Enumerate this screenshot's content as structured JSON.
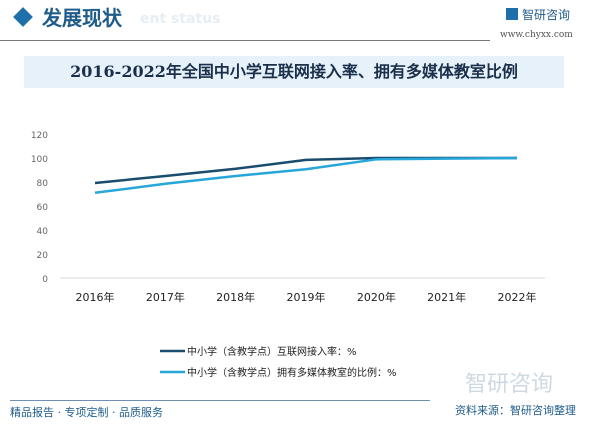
{
  "header": {
    "title": "发展现状",
    "subtitle": "ent status",
    "logo": "智研咨询",
    "url": "www.chyxx.com"
  },
  "chart_data": {
    "type": "line",
    "title": "2016-2022年全国中小学互联网接入率、拥有多媒体教室比例",
    "categories": [
      "2016年",
      "2017年",
      "2018年",
      "2019年",
      "2020年",
      "2021年",
      "2022年"
    ],
    "ylim": [
      0,
      120
    ],
    "yticks": [
      0,
      20,
      40,
      60,
      80,
      100,
      120
    ],
    "grid": false,
    "legend": "bottom",
    "series": [
      {
        "name": "中小学（含教学点）互联网接入率：%",
        "color": "#1a4c6e",
        "values": [
          79.2,
          85,
          91,
          98.4,
          100,
          100,
          100
        ]
      },
      {
        "name": "中小学（含教学点）拥有多媒体教室的比例：%",
        "color": "#27a6d9",
        "values": [
          71,
          78.5,
          85,
          90.6,
          98.9,
          99.5,
          100
        ]
      }
    ]
  },
  "footer": {
    "slogan": "精品报告 · 专项定制 · 品质服务",
    "source": "资料来源：智研咨询整理",
    "watermark": "智研咨询"
  }
}
